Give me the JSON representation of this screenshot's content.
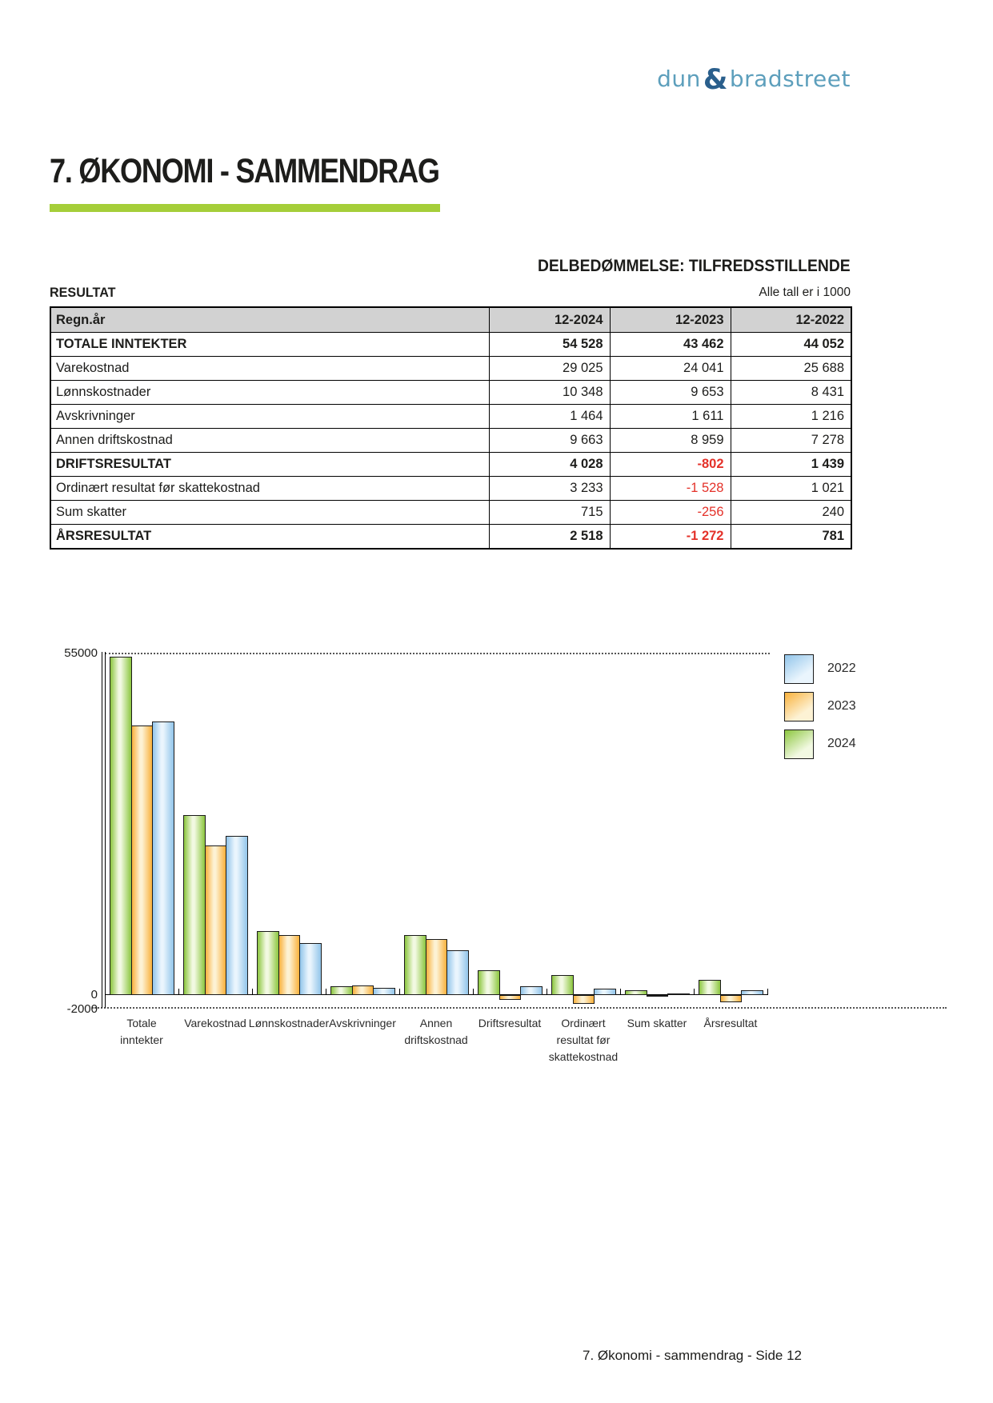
{
  "logo": {
    "word1": "dun",
    "ampersand": "&",
    "word2": "bradstreet",
    "color_light": "#5d9fbc",
    "color_dark": "#2a5f8c"
  },
  "page": {
    "title": "7. ØKONOMI - SAMMENDRAG",
    "footer": "7. Økonomi - sammendrag - Side 12",
    "accent_green": "#a5ce39"
  },
  "assessment": "DELBEDØMMELSE: TILFREDSSTILLENDE",
  "result_section": {
    "heading": "RESULTAT",
    "note": "Alle tall er i 1000",
    "table": {
      "header": [
        "Regn.år",
        "12-2024",
        "12-2023",
        "12-2022"
      ],
      "header_bg": "#d2d2d2",
      "negative_color": "#e43129",
      "rows": [
        {
          "label": "TOTALE INNTEKTER",
          "bold": true,
          "values": [
            "54 528",
            "43 462",
            "44 052"
          ]
        },
        {
          "label": "Varekostnad",
          "bold": false,
          "values": [
            "29 025",
            "24 041",
            "25 688"
          ]
        },
        {
          "label": "Lønnskostnader",
          "bold": false,
          "values": [
            "10 348",
            "9 653",
            "8 431"
          ]
        },
        {
          "label": "Avskrivninger",
          "bold": false,
          "values": [
            "1 464",
            "1 611",
            "1 216"
          ]
        },
        {
          "label": "Annen driftskostnad",
          "bold": false,
          "values": [
            "9 663",
            "8 959",
            "7 278"
          ]
        },
        {
          "label": "DRIFTSRESULTAT",
          "bold": true,
          "values": [
            "4 028",
            "-802",
            "1 439"
          ]
        },
        {
          "label": "Ordinært resultat før skattekostnad",
          "bold": false,
          "values": [
            "3 233",
            "-1 528",
            "1 021"
          ]
        },
        {
          "label": "Sum skatter",
          "bold": false,
          "values": [
            "715",
            "-256",
            "240"
          ]
        },
        {
          "label": "ÅRSRESULTAT",
          "bold": true,
          "values": [
            "2 518",
            "-1 272",
            "781"
          ]
        }
      ]
    }
  },
  "chart_data": {
    "type": "bar",
    "title": "",
    "categories": [
      "Totale inntekter",
      "Varekostnad",
      "Lønnskostnader",
      "Avskrivninger",
      "Annen driftskostnad",
      "Driftsresultat",
      "Ordinært resultat før skattekostnad",
      "Sum skatter",
      "Årsresultat"
    ],
    "category_label_lines": [
      [
        "Totale",
        "inntekter"
      ],
      [
        "Varekostnad"
      ],
      [
        "Lønnskostnader"
      ],
      [
        "Avskrivninger"
      ],
      [
        "Annen",
        "driftskostnad"
      ],
      [
        "Driftsresultat"
      ],
      [
        "Ordinært",
        "resultat før",
        "skattekostnad"
      ],
      [
        "Sum skatter"
      ],
      [
        "Årsresultat"
      ]
    ],
    "series": [
      {
        "name": "2024",
        "color": "#8cc63f",
        "color_light": "#f2f9e2",
        "values": [
          54528,
          29025,
          10348,
          1464,
          9663,
          4028,
          3233,
          715,
          2518
        ]
      },
      {
        "name": "2023",
        "color": "#f9b13c",
        "color_light": "#fdf2d4",
        "values": [
          43462,
          24041,
          9653,
          1611,
          8959,
          -802,
          -1528,
          -256,
          -1272
        ]
      },
      {
        "name": "2022",
        "color": "#92c5ea",
        "color_light": "#eaf5fd",
        "values": [
          44052,
          25688,
          8431,
          1216,
          7278,
          1439,
          1021,
          240,
          781
        ]
      }
    ],
    "legend": [
      "2022",
      "2023",
      "2024"
    ],
    "legend_position": "right-top",
    "yticks": [
      "55000",
      "0",
      "-2000"
    ],
    "ylim": [
      -2000,
      55000
    ],
    "gridlines": "dotted lines at y=55000 and y=-2000",
    "xlabel": "",
    "ylabel": ""
  }
}
